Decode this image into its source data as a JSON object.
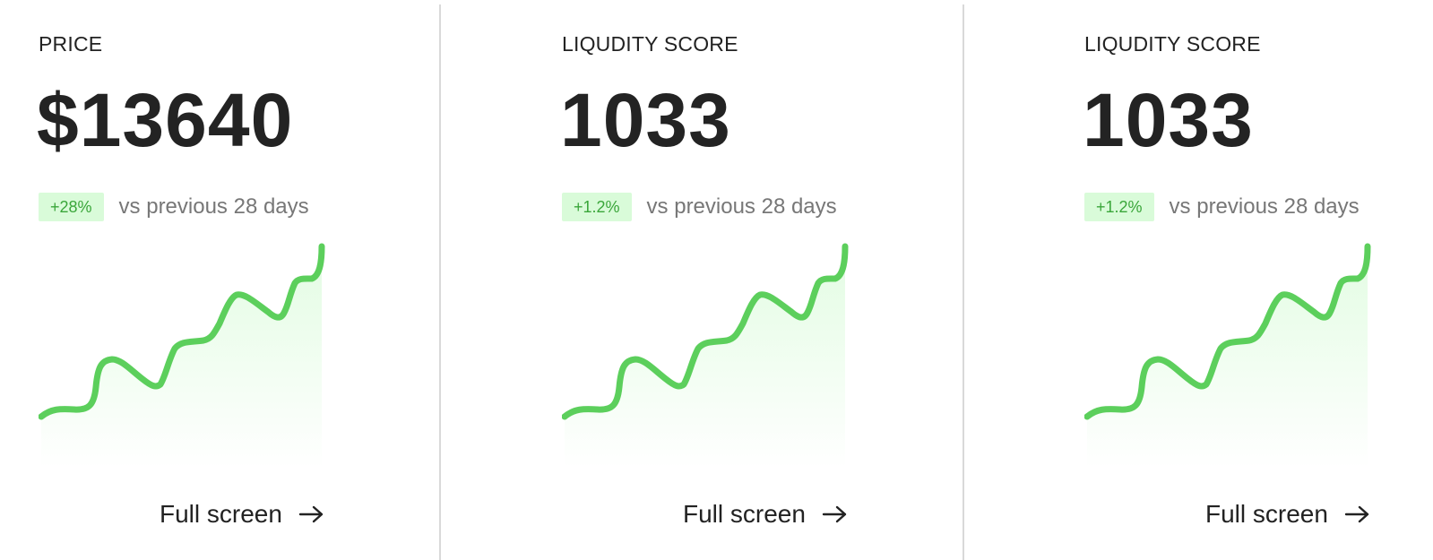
{
  "cards": [
    {
      "label": "PRICE",
      "value": "$13640",
      "delta": "+28%",
      "compare": "vs previous 28 days",
      "link": "Full screen"
    },
    {
      "label": "LIQUDITY SCORE",
      "value": "1033",
      "delta": "+1.2%",
      "compare": "vs previous 28 days",
      "link": "Full screen"
    },
    {
      "label": "LIQUDITY SCORE",
      "value": "1033",
      "delta": "+1.2%",
      "compare": "vs previous 28 days",
      "link": "Full screen"
    }
  ],
  "colors": {
    "line": "#5ccf5c",
    "badge_bg": "#d9fbd9",
    "badge_text": "#3aa63a"
  },
  "icons": {
    "link_arrow": "arrow-right-icon"
  }
}
